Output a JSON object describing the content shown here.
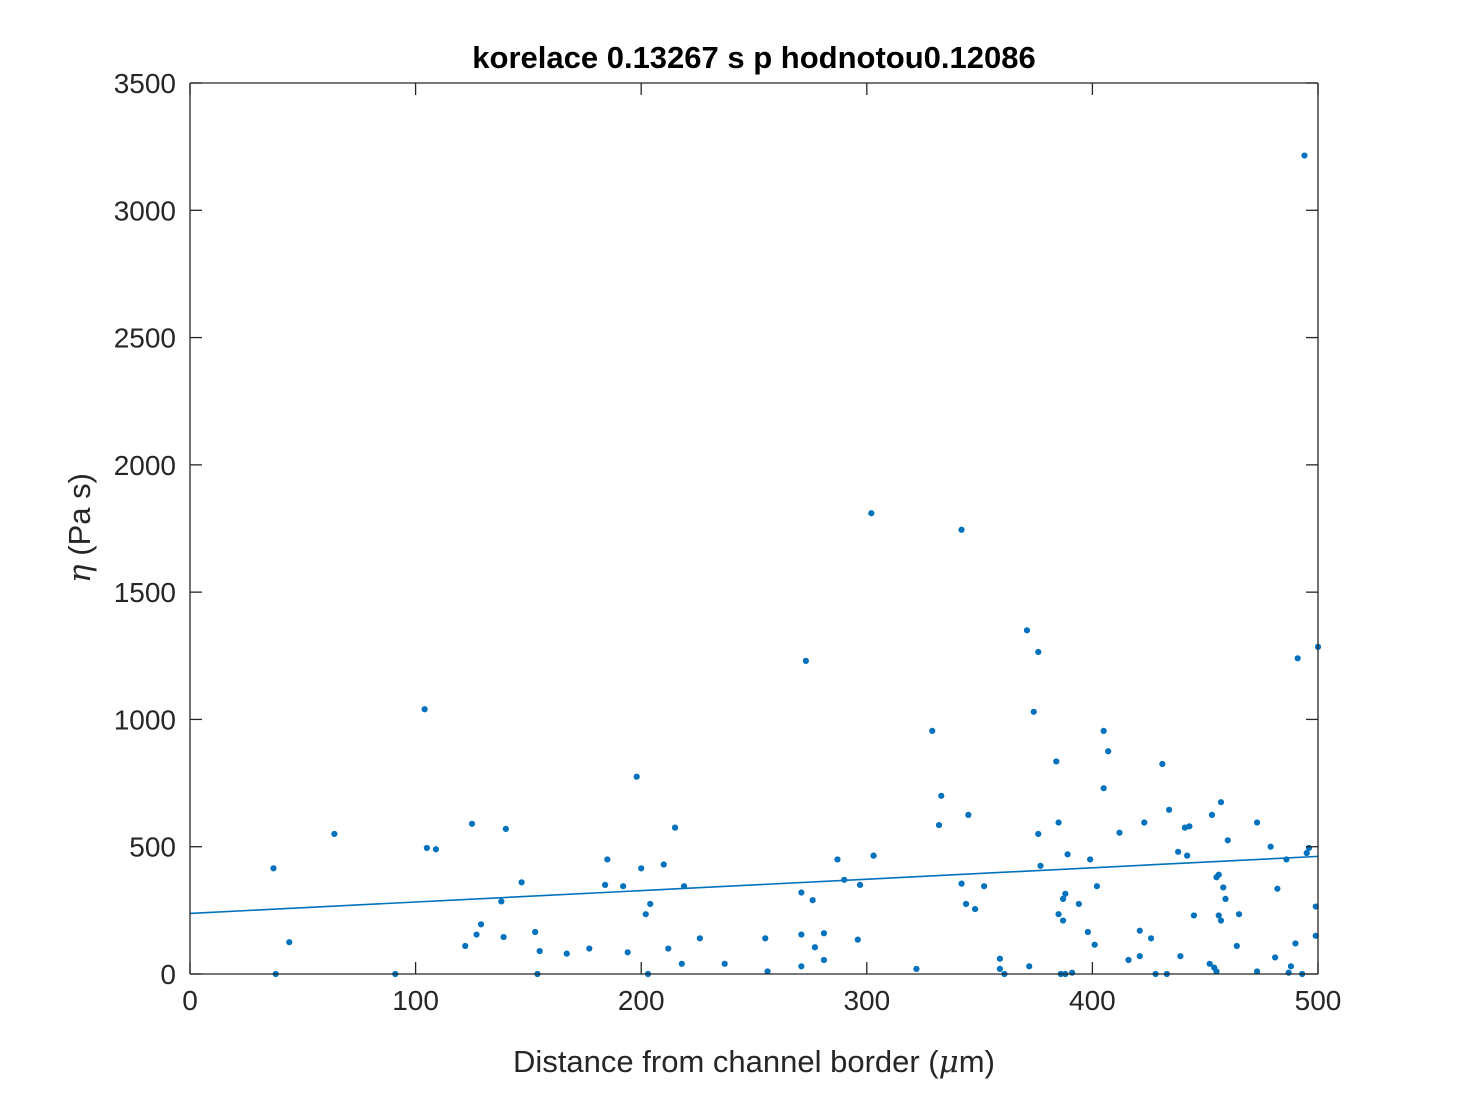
{
  "chart_data": {
    "type": "scatter",
    "title": "korelace 0.13267 s p hodnotou0.12086",
    "xlabel": {
      "prefix": "Distance from channel border (",
      "greek": "μ",
      "suffix": "m)"
    },
    "ylabel": {
      "greek": "η",
      "suffix": " (Pa s)"
    },
    "xlim": [
      0,
      500
    ],
    "ylim": [
      0,
      3500
    ],
    "xticks": [
      0,
      100,
      200,
      300,
      400,
      500
    ],
    "yticks": [
      0,
      500,
      1000,
      1500,
      2000,
      2500,
      3000,
      3500
    ],
    "xtick_labels": [
      "0",
      "100",
      "200",
      "300",
      "400",
      "500"
    ],
    "ytick_labels": [
      "0",
      "500",
      "1000",
      "1500",
      "2000",
      "2500",
      "3000",
      "3500"
    ],
    "grid": false,
    "color": "#0072BD",
    "fit_line": {
      "x": [
        0,
        500
      ],
      "y": [
        238,
        462
      ]
    },
    "points": [
      [
        37,
        415
      ],
      [
        38,
        0
      ],
      [
        44,
        125
      ],
      [
        64,
        550
      ],
      [
        91,
        0
      ],
      [
        104,
        1040
      ],
      [
        105,
        495
      ],
      [
        109,
        490
      ],
      [
        122,
        110
      ],
      [
        125,
        590
      ],
      [
        127,
        155
      ],
      [
        129,
        195
      ],
      [
        138,
        285
      ],
      [
        139,
        145
      ],
      [
        140,
        570
      ],
      [
        147,
        360
      ],
      [
        153,
        165
      ],
      [
        154,
        0
      ],
      [
        155,
        90
      ],
      [
        167,
        80
      ],
      [
        177,
        100
      ],
      [
        184,
        350
      ],
      [
        185,
        450
      ],
      [
        192,
        345
      ],
      [
        194,
        85
      ],
      [
        198,
        775
      ],
      [
        200,
        415
      ],
      [
        202,
        235
      ],
      [
        203,
        0
      ],
      [
        204,
        275
      ],
      [
        210,
        430
      ],
      [
        212,
        100
      ],
      [
        215,
        575
      ],
      [
        218,
        40
      ],
      [
        219,
        345
      ],
      [
        226,
        140
      ],
      [
        237,
        40
      ],
      [
        255,
        140
      ],
      [
        256,
        10
      ],
      [
        271,
        320
      ],
      [
        271,
        155
      ],
      [
        271,
        30
      ],
      [
        273,
        1230
      ],
      [
        276,
        290
      ],
      [
        277,
        105
      ],
      [
        281,
        160
      ],
      [
        281,
        55
      ],
      [
        287,
        450
      ],
      [
        290,
        370
      ],
      [
        296,
        135
      ],
      [
        297,
        350
      ],
      [
        302,
        1810
      ],
      [
        303,
        465
      ],
      [
        322,
        20
      ],
      [
        329,
        955
      ],
      [
        332,
        585
      ],
      [
        333,
        700
      ],
      [
        342,
        1745
      ],
      [
        342,
        355
      ],
      [
        344,
        275
      ],
      [
        345,
        625
      ],
      [
        348,
        255
      ],
      [
        352,
        345
      ],
      [
        359,
        60
      ],
      [
        359,
        20
      ],
      [
        361,
        0
      ],
      [
        371,
        1350
      ],
      [
        372,
        30
      ],
      [
        374,
        1030
      ],
      [
        376,
        1265
      ],
      [
        376,
        550
      ],
      [
        377,
        425
      ],
      [
        384,
        835
      ],
      [
        385,
        235
      ],
      [
        385,
        595
      ],
      [
        386,
        0
      ],
      [
        387,
        295
      ],
      [
        387,
        210
      ],
      [
        388,
        315
      ],
      [
        388,
        0
      ],
      [
        389,
        470
      ],
      [
        391,
        5
      ],
      [
        394,
        275
      ],
      [
        398,
        165
      ],
      [
        399,
        450
      ],
      [
        401,
        115
      ],
      [
        402,
        345
      ],
      [
        405,
        955
      ],
      [
        405,
        730
      ],
      [
        407,
        875
      ],
      [
        412,
        555
      ],
      [
        416,
        55
      ],
      [
        421,
        170
      ],
      [
        421,
        70
      ],
      [
        423,
        595
      ],
      [
        426,
        140
      ],
      [
        428,
        0
      ],
      [
        431,
        825
      ],
      [
        433,
        0
      ],
      [
        434,
        645
      ],
      [
        438,
        480
      ],
      [
        439,
        70
      ],
      [
        441,
        575
      ],
      [
        442,
        465
      ],
      [
        443,
        580
      ],
      [
        445,
        230
      ],
      [
        452,
        40
      ],
      [
        453,
        625
      ],
      [
        454,
        25
      ],
      [
        455,
        380
      ],
      [
        455,
        10
      ],
      [
        456,
        390
      ],
      [
        456,
        230
      ],
      [
        457,
        210
      ],
      [
        457,
        675
      ],
      [
        458,
        340
      ],
      [
        459,
        295
      ],
      [
        460,
        525
      ],
      [
        464,
        110
      ],
      [
        465,
        235
      ],
      [
        473,
        595
      ],
      [
        473,
        10
      ],
      [
        479,
        500
      ],
      [
        481,
        65
      ],
      [
        482,
        335
      ],
      [
        486,
        450
      ],
      [
        487,
        5
      ],
      [
        488,
        30
      ],
      [
        490,
        120
      ],
      [
        491,
        1240
      ],
      [
        493,
        0
      ],
      [
        494,
        3215
      ],
      [
        495,
        475
      ],
      [
        496,
        495
      ],
      [
        499,
        265
      ],
      [
        499,
        150
      ],
      [
        500,
        1285
      ]
    ]
  }
}
